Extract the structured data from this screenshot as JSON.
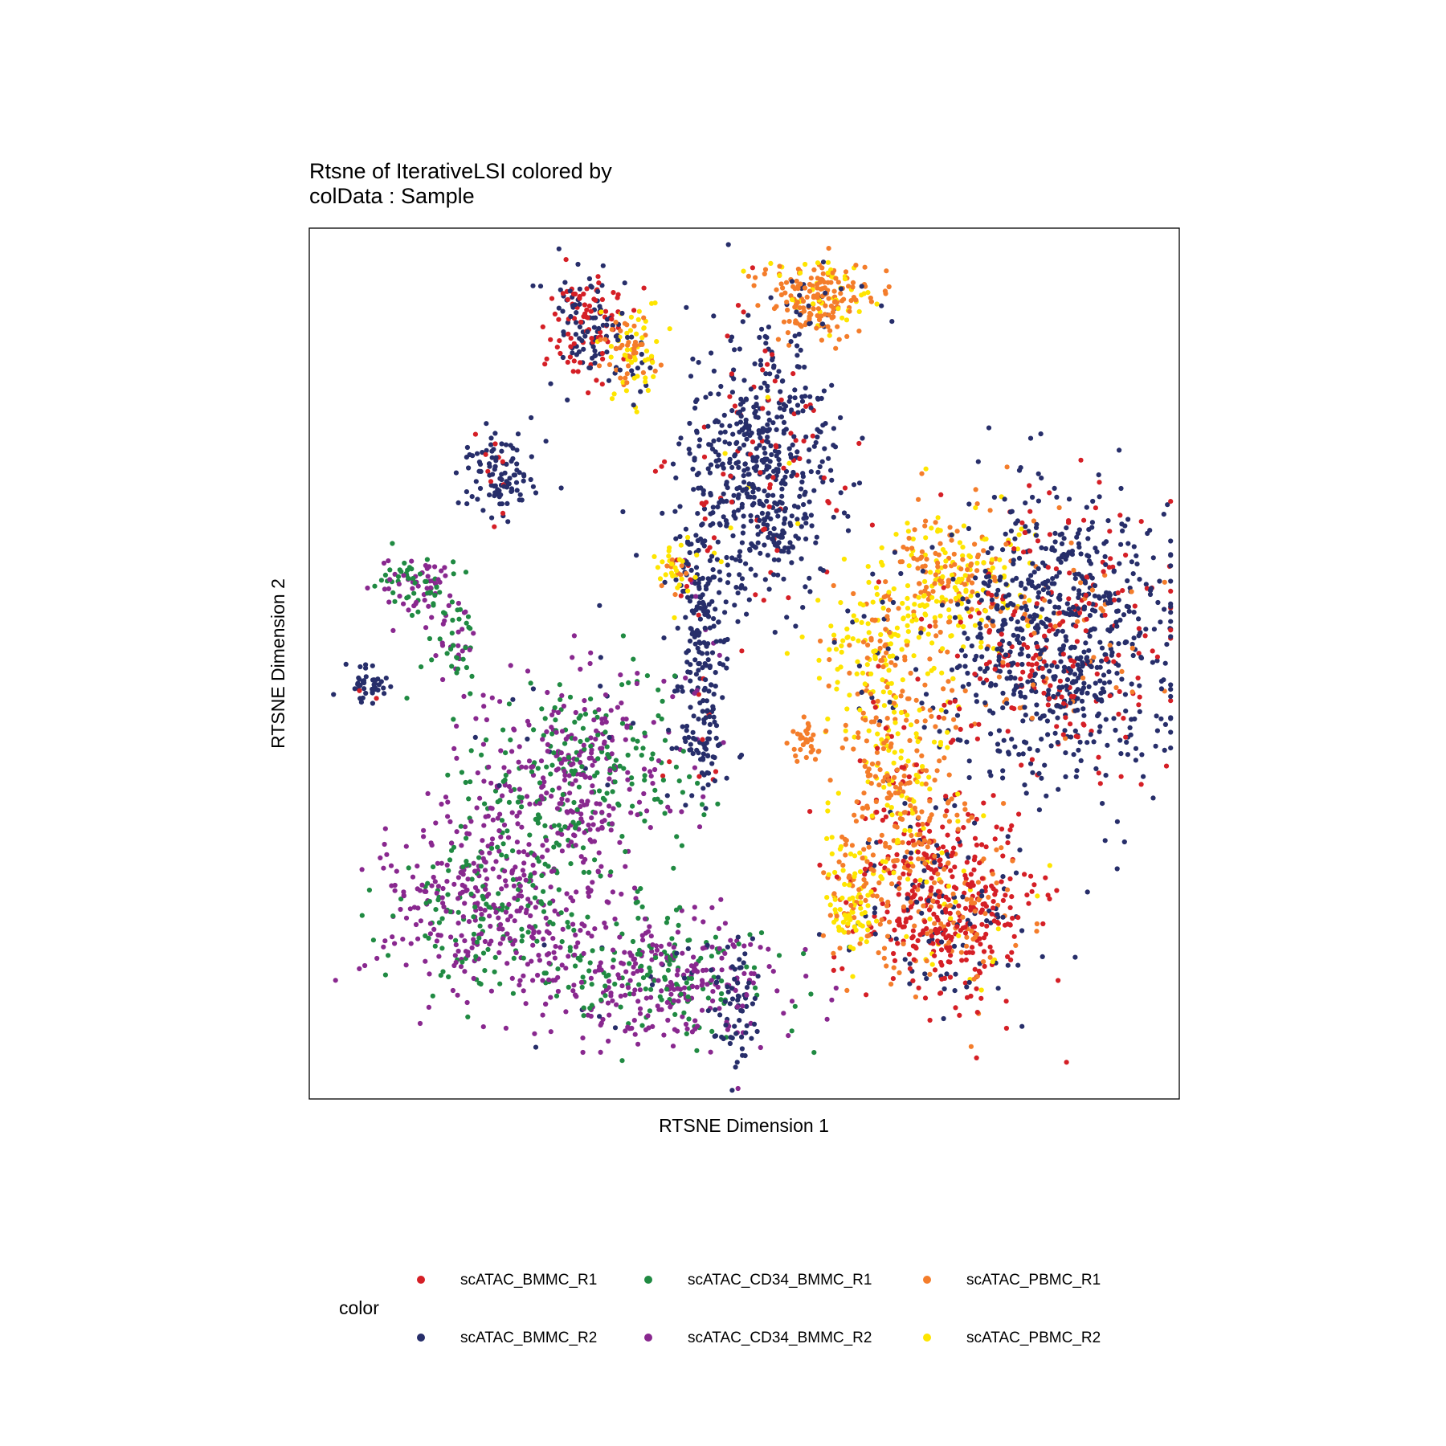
{
  "chart_data": {
    "type": "scatter",
    "title": [
      "Rtsne of IterativeLSI  colored by",
      "colData :  Sample"
    ],
    "xlabel": "RTSNE Dimension 1",
    "ylabel": "RTSNE Dimension 2",
    "xlim": [
      0,
      100
    ],
    "ylim": [
      0,
      100
    ],
    "grid": false,
    "axis_ticks": false,
    "legend": {
      "title": "color",
      "position": "bottom",
      "entries": [
        {
          "label": "scATAC_BMMC_R1",
          "color": "#D51F26"
        },
        {
          "label": "scATAC_CD34_BMMC_R1",
          "color": "#208A42"
        },
        {
          "label": "scATAC_PBMC_R1",
          "color": "#F47D2B"
        },
        {
          "label": "scATAC_BMMC_R2",
          "color": "#272E6A"
        },
        {
          "label": "scATAC_CD34_BMMC_R2",
          "color": "#89288F"
        },
        {
          "label": "scATAC_PBMC_R2",
          "color": "#FEE500"
        }
      ]
    },
    "clusters": [
      {
        "x": 32,
        "y": 89,
        "sx": 2.2,
        "sy": 3.2,
        "n": 170,
        "mix": {
          "BMMC_R1": 0.45,
          "BMMC_R2": 0.55
        }
      },
      {
        "x": 37,
        "y": 85,
        "sx": 1.6,
        "sy": 2.8,
        "n": 110,
        "mix": {
          "PBMC_R1": 0.45,
          "PBMC_R2": 0.4,
          "BMMC_R2": 0.15
        }
      },
      {
        "x": 59,
        "y": 92,
        "sx": 3.2,
        "sy": 2.4,
        "n": 220,
        "mix": {
          "PBMC_R1": 0.7,
          "PBMC_R2": 0.2,
          "BMMC_R2": 0.1
        }
      },
      {
        "x": 52,
        "y": 72,
        "sx": 4.5,
        "sy": 7.5,
        "n": 620,
        "mix": {
          "BMMC_R2": 0.85,
          "BMMC_R1": 0.13,
          "PBMC_R2": 0.02
        }
      },
      {
        "x": 45,
        "y": 54,
        "sx": 1.6,
        "sy": 6.5,
        "n": 180,
        "mix": {
          "BMMC_R2": 0.92,
          "BMMC_R1": 0.05,
          "CD34_BMMC_R2": 0.03
        }
      },
      {
        "x": 45,
        "y": 40,
        "sx": 2.0,
        "sy": 2.5,
        "n": 70,
        "mix": {
          "BMMC_R2": 0.85,
          "CD34_BMMC_R2": 0.1,
          "BMMC_R1": 0.05
        }
      },
      {
        "x": 42,
        "y": 61,
        "sx": 1.1,
        "sy": 2.0,
        "n": 35,
        "mix": {
          "PBMC_R2": 0.7,
          "PBMC_R1": 0.3
        }
      },
      {
        "x": 22,
        "y": 72,
        "sx": 2.0,
        "sy": 2.5,
        "n": 110,
        "mix": {
          "BMMC_R2": 0.9,
          "BMMC_R1": 0.1
        }
      },
      {
        "x": 12,
        "y": 59,
        "sx": 2.2,
        "sy": 2.0,
        "n": 90,
        "mix": {
          "CD34_BMMC_R2": 0.55,
          "CD34_BMMC_R1": 0.45
        }
      },
      {
        "x": 17,
        "y": 53,
        "sx": 1.2,
        "sy": 3.5,
        "n": 60,
        "mix": {
          "CD34_BMMC_R1": 0.6,
          "CD34_BMMC_R2": 0.4
        }
      },
      {
        "x": 6.5,
        "y": 47.5,
        "sx": 1.2,
        "sy": 1.2,
        "n": 45,
        "mix": {
          "BMMC_R2": 0.9,
          "BMMC_R1": 0.1
        }
      },
      {
        "x": 31,
        "y": 38,
        "sx": 6.5,
        "sy": 5.5,
        "n": 460,
        "mix": {
          "CD34_BMMC_R2": 0.55,
          "CD34_BMMC_R1": 0.42,
          "BMMC_R2": 0.03
        }
      },
      {
        "x": 21,
        "y": 23,
        "sx": 6.0,
        "sy": 5.5,
        "n": 500,
        "mix": {
          "CD34_BMMC_R2": 0.65,
          "CD34_BMMC_R1": 0.35
        }
      },
      {
        "x": 40,
        "y": 14,
        "sx": 7.0,
        "sy": 4.0,
        "n": 420,
        "mix": {
          "CD34_BMMC_R2": 0.58,
          "CD34_BMMC_R1": 0.37,
          "BMMC_R2": 0.05
        }
      },
      {
        "x": 49,
        "y": 10,
        "sx": 1.5,
        "sy": 3.5,
        "n": 70,
        "mix": {
          "BMMC_R2": 0.85,
          "CD34_BMMC_R2": 0.15
        }
      },
      {
        "x": 74,
        "y": 60,
        "sx": 4.5,
        "sy": 4.0,
        "n": 260,
        "mix": {
          "PBMC_R1": 0.55,
          "PBMC_R2": 0.45
        }
      },
      {
        "x": 66,
        "y": 50,
        "sx": 3.5,
        "sy": 5.5,
        "n": 220,
        "mix": {
          "PBMC_R2": 0.55,
          "PBMC_R1": 0.35,
          "BMMC_R2": 0.1
        }
      },
      {
        "x": 86,
        "y": 53,
        "sx": 6.5,
        "sy": 8.0,
        "n": 950,
        "mix": {
          "BMMC_R2": 0.72,
          "BMMC_R1": 0.23,
          "PBMC_R1": 0.05
        }
      },
      {
        "x": 73,
        "y": 22,
        "sx": 5.0,
        "sy": 6.0,
        "n": 560,
        "mix": {
          "BMMC_R1": 0.6,
          "PBMC_R1": 0.2,
          "BMMC_R2": 0.15,
          "PBMC_R2": 0.05
        }
      },
      {
        "x": 68,
        "y": 35,
        "sx": 3.0,
        "sy": 7.5,
        "n": 280,
        "mix": {
          "PBMC_R1": 0.6,
          "PBMC_R2": 0.25,
          "BMMC_R1": 0.15
        }
      },
      {
        "x": 62,
        "y": 23,
        "sx": 1.6,
        "sy": 4.0,
        "n": 110,
        "mix": {
          "PBMC_R2": 0.6,
          "PBMC_R1": 0.4
        }
      },
      {
        "x": 57,
        "y": 41,
        "sx": 0.9,
        "sy": 1.0,
        "n": 30,
        "mix": {
          "PBMC_R1": 1.0
        }
      }
    ]
  }
}
